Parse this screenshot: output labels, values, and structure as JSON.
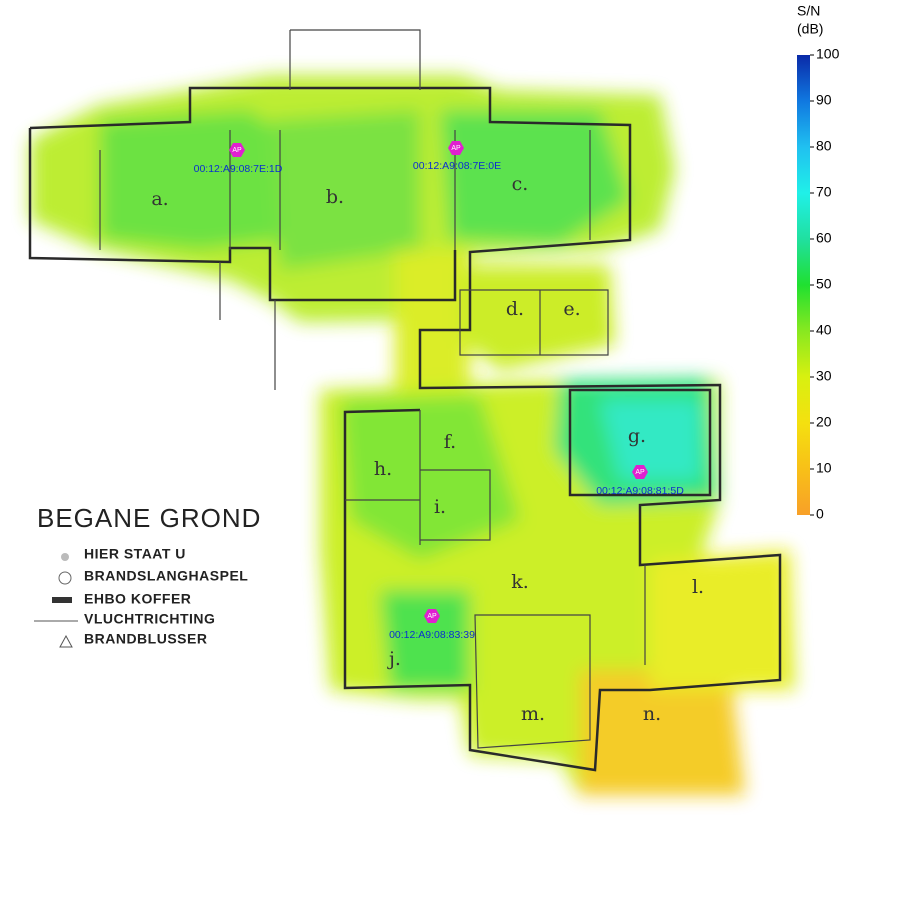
{
  "title": "BEGANE GROND",
  "legend_items": [
    "HIER STAAT U",
    "BRANDSLANGHASPEL",
    "EHBO KOFFER",
    "VLUCHTRICHTING",
    "BRANDBLUSSER"
  ],
  "rooms": [
    "a.",
    "b.",
    "c.",
    "d.",
    "e.",
    "f.",
    "g.",
    "h.",
    "i.",
    "j.",
    "k.",
    "l.",
    "m.",
    "n."
  ],
  "access_points": [
    {
      "label": "AP",
      "mac": "00:12:A9:08:7E:1D"
    },
    {
      "label": "AP",
      "mac": "00:12:A9:08:7E:0E"
    },
    {
      "label": "AP",
      "mac": "00:12:A9:08:81:5D"
    },
    {
      "label": "AP",
      "mac": "00:12:A9:08:83:39"
    }
  ],
  "colorbar": {
    "title": [
      "S/N",
      "(dB)"
    ],
    "ticks": [
      0,
      10,
      20,
      30,
      40,
      50,
      60,
      70,
      80,
      90,
      100
    ]
  }
}
